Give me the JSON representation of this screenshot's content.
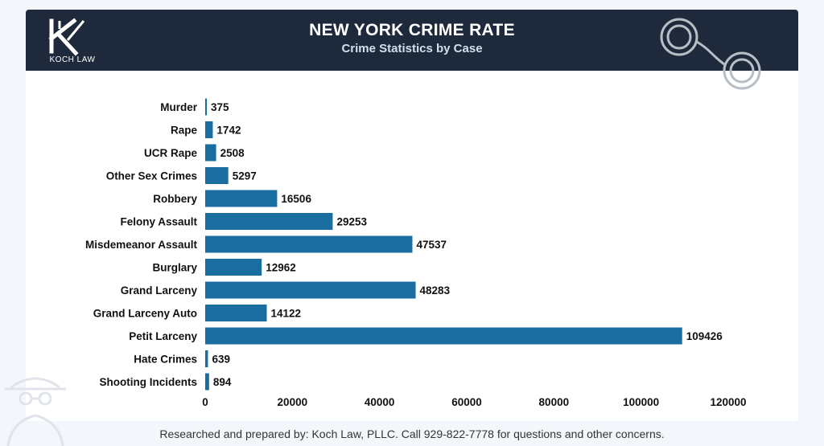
{
  "header": {
    "logo_text": "KOCH LAW",
    "title": "NEW YORK CRIME RATE",
    "subtitle": "Crime Statistics by Case"
  },
  "footer": {
    "text": "Researched and prepared by:  Koch Law, PLLC. Call 929-822-7778 for questions and other concerns."
  },
  "colors": {
    "header_bg": "#1e2a3b",
    "bar": "#1a6e9f",
    "text": "#111111"
  },
  "icons": [
    "koch-law-logo-icon",
    "handcuffs-icon",
    "spy-icon"
  ],
  "chart_data": {
    "type": "bar",
    "orientation": "horizontal",
    "categories": [
      "Murder",
      "Rape",
      "UCR Rape",
      "Other Sex Crimes",
      "Robbery",
      "Felony Assault",
      "Misdemeanor Assault",
      "Burglary",
      "Grand Larceny",
      "Grand Larceny Auto",
      "Petit Larceny",
      "Hate Crimes",
      "Shooting Incidents"
    ],
    "values": [
      375,
      1742,
      2508,
      5297,
      16506,
      29253,
      47537,
      12962,
      48283,
      14122,
      109426,
      639,
      894
    ],
    "xlim": [
      0,
      120000
    ],
    "xticks": [
      0,
      20000,
      40000,
      60000,
      80000,
      100000,
      120000
    ],
    "grid": false,
    "data_labels": true
  }
}
